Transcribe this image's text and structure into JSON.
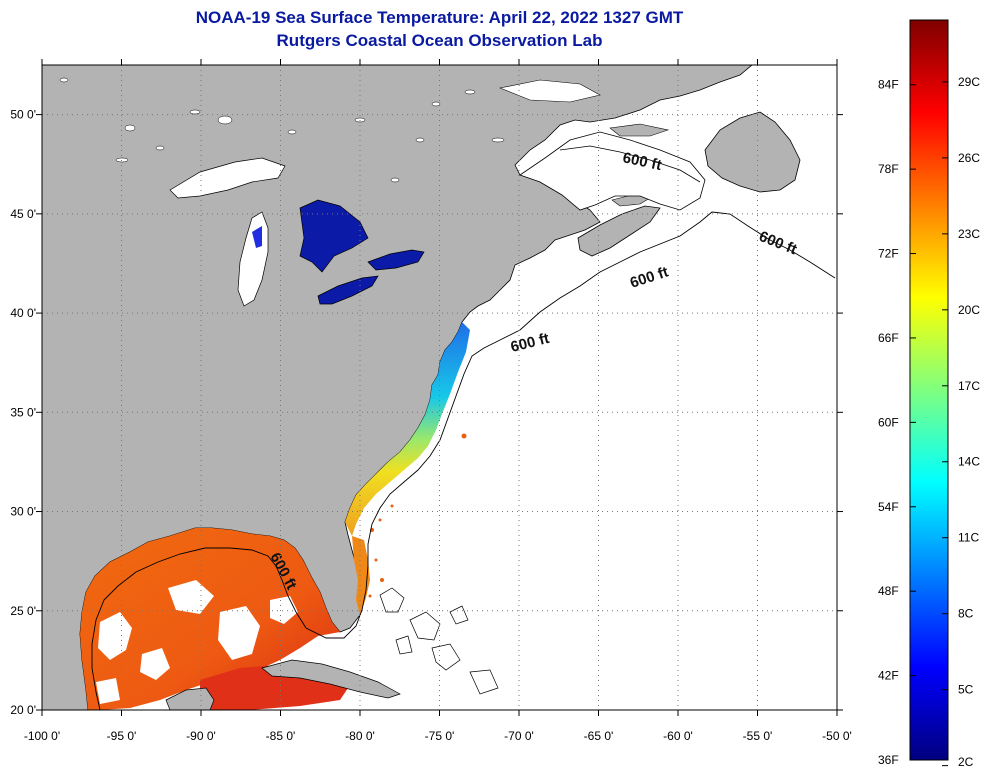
{
  "title_line1": "NOAA-19 Sea Surface Temperature:  April 22, 2022 1327 GMT",
  "title_line2": "Rutgers Coastal Ocean Observation Lab",
  "map": {
    "lon_ticks": [
      {
        "v": -100,
        "label": "-100 0'"
      },
      {
        "v": -95,
        "label": "-95 0'"
      },
      {
        "v": -90,
        "label": "-90 0'"
      },
      {
        "v": -85,
        "label": "-85 0'"
      },
      {
        "v": -80,
        "label": "-80 0'"
      },
      {
        "v": -75,
        "label": "-75 0'"
      },
      {
        "v": -70,
        "label": "-70 0'"
      },
      {
        "v": -65,
        "label": "-65 0'"
      },
      {
        "v": -60,
        "label": "-60 0'"
      },
      {
        "v": -55,
        "label": "-55 0'"
      },
      {
        "v": -50,
        "label": "-50 0'"
      }
    ],
    "lat_ticks": [
      {
        "v": 20,
        "label": "20 0'"
      },
      {
        "v": 25,
        "label": "25 0'"
      },
      {
        "v": 30,
        "label": "30 0'"
      },
      {
        "v": 35,
        "label": "35 0'"
      },
      {
        "v": 40,
        "label": "40 0'"
      },
      {
        "v": 45,
        "label": "45 0'"
      },
      {
        "v": 50,
        "label": "50 0'"
      }
    ],
    "depth_label": "600 ft",
    "land_color": "#b3b3b3",
    "ocean_color": "#ffffff"
  },
  "colorbar": {
    "colors": [
      "#00007f",
      "#0000ff",
      "#007fff",
      "#00ffff",
      "#7fff7f",
      "#ffff00",
      "#ff7f00",
      "#ff0000",
      "#7f0000"
    ],
    "fahrenheit": [
      {
        "v": 36,
        "label": "36F"
      },
      {
        "v": 42,
        "label": "42F"
      },
      {
        "v": 48,
        "label": "48F"
      },
      {
        "v": 54,
        "label": "54F"
      },
      {
        "v": 60,
        "label": "60F"
      },
      {
        "v": 66,
        "label": "66F"
      },
      {
        "v": 72,
        "label": "72F"
      },
      {
        "v": 78,
        "label": "78F"
      },
      {
        "v": 84,
        "label": "84F"
      }
    ],
    "celsius": [
      {
        "v": 2,
        "label": "2C"
      },
      {
        "v": 5,
        "label": "5C"
      },
      {
        "v": 8,
        "label": "8C"
      },
      {
        "v": 11,
        "label": "11C"
      },
      {
        "v": 14,
        "label": "14C"
      },
      {
        "v": 17,
        "label": "17C"
      },
      {
        "v": 20,
        "label": "20C"
      },
      {
        "v": 23,
        "label": "23C"
      },
      {
        "v": 26,
        "label": "26C"
      },
      {
        "v": 29,
        "label": "29C"
      }
    ]
  }
}
